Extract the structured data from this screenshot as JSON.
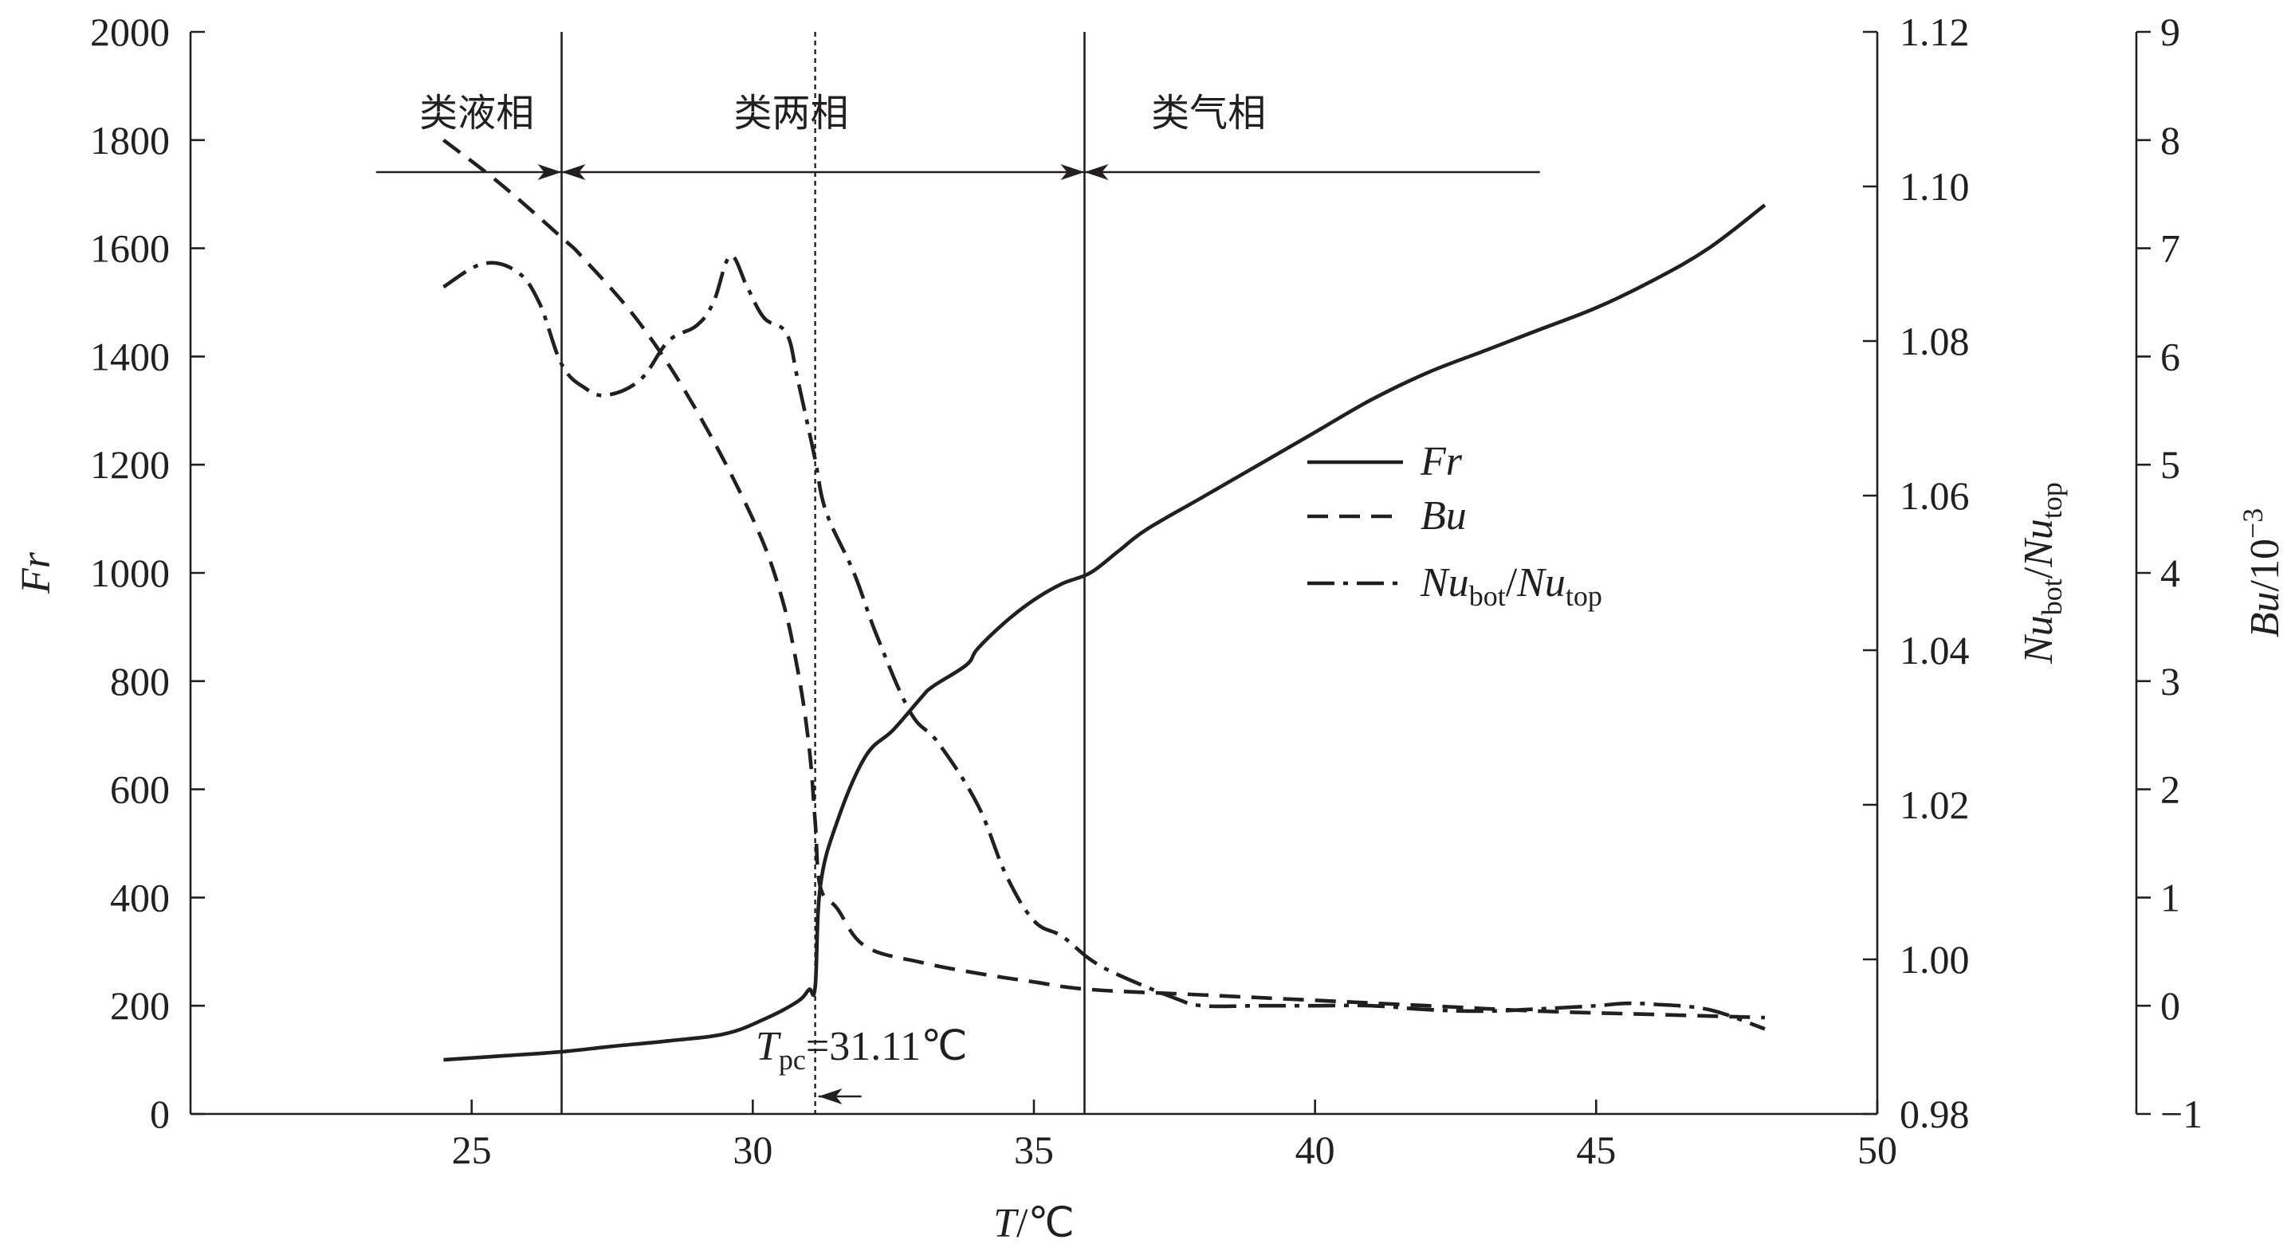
{
  "chart_data": {
    "type": "line",
    "xlabel": {
      "var": "T",
      "unit": "/℃"
    },
    "x_axis": {
      "range": [
        20,
        50
      ],
      "ticks": [
        "25",
        "30",
        "35",
        "40",
        "45",
        "50"
      ]
    },
    "y_left": {
      "label": "Fr",
      "range": [
        0,
        2000
      ],
      "ticks": [
        "0",
        "200",
        "400",
        "600",
        "800",
        "1000",
        "1200",
        "1400",
        "1600",
        "1800",
        "2000"
      ]
    },
    "y_right1": {
      "label_parts": [
        "Nu",
        "bot",
        "/",
        "Nu",
        "top"
      ],
      "range": [
        0.98,
        1.12
      ],
      "ticks": [
        "0.98",
        "1.00",
        "1.02",
        "1.04",
        "1.06",
        "1.08",
        "1.10",
        "1.12"
      ]
    },
    "y_right2": {
      "label_parts": [
        "Bu",
        "/10",
        "−3"
      ],
      "range": [
        -1,
        9
      ],
      "ticks": [
        "−1",
        "0",
        "1",
        "2",
        "3",
        "4",
        "5",
        "6",
        "7",
        "8",
        "9"
      ]
    },
    "regions": [
      {
        "label": "类液相",
        "x_from": 23.3,
        "x_to": 26.6
      },
      {
        "label": "类两相",
        "x_from": 26.6,
        "x_to": 35.9
      },
      {
        "label": "类气相",
        "x_from": 35.9,
        "x_to": 44.0
      }
    ],
    "boundaries": [
      26.6,
      35.9
    ],
    "pseudo_critical": {
      "x": 31.11,
      "label_var": "T",
      "label_sub": "pc",
      "label_value": "=31.11℃"
    },
    "legend": {
      "position": "center-right",
      "entries": [
        {
          "series": "Fr",
          "style": "solid"
        },
        {
          "series": "Bu",
          "style": "dashed"
        },
        {
          "series": "Nubot/Nutop",
          "style": "dash-dot",
          "parts": [
            "Nu",
            "bot",
            "/",
            "Nu",
            "top"
          ]
        }
      ]
    },
    "series": [
      {
        "name": "Fr",
        "axis": "left",
        "style": "solid",
        "x": [
          24.5,
          25.5,
          26.6,
          27.5,
          28.5,
          29.5,
          30.2,
          30.8,
          31.0,
          31.11,
          31.2,
          31.5,
          32.0,
          32.5,
          33.0,
          33.2,
          33.8,
          34.0,
          34.5,
          35.0,
          35.5,
          36.0,
          36.5,
          37.0,
          38.0,
          39.0,
          40.0,
          41.0,
          42.0,
          43.0,
          44.0,
          45.0,
          46.0,
          47.0,
          48.0
        ],
        "y": [
          100,
          107,
          115,
          125,
          135,
          148,
          175,
          208,
          230,
          235,
          420,
          540,
          660,
          710,
          770,
          790,
          830,
          860,
          910,
          950,
          980,
          1000,
          1040,
          1080,
          1140,
          1200,
          1260,
          1320,
          1370,
          1410,
          1450,
          1490,
          1540,
          1600,
          1680
        ]
      },
      {
        "name": "Bu",
        "axis": "right2",
        "style": "dashed",
        "x": [
          24.5,
          25.5,
          26.6,
          27.0,
          28.0,
          29.0,
          30.0,
          30.5,
          30.8,
          31.0,
          31.11,
          31.2,
          31.5,
          32.0,
          33.0,
          34.0,
          35.0,
          36.0,
          38.0,
          40.0,
          42.0,
          44.0,
          46.0,
          48.0
        ],
        "y": [
          8.0,
          7.6,
          7.1,
          6.9,
          6.3,
          5.5,
          4.5,
          3.8,
          3.1,
          2.4,
          1.7,
          1.1,
          0.9,
          0.55,
          0.4,
          0.3,
          0.22,
          0.15,
          0.1,
          0.05,
          0.0,
          -0.05,
          -0.08,
          -0.11
        ]
      },
      {
        "name": "Nubot/Nutop",
        "axis": "right1",
        "style": "dash-dot",
        "x": [
          24.5,
          25.2,
          25.8,
          26.2,
          26.6,
          27.0,
          27.4,
          28.0,
          28.5,
          29.0,
          29.3,
          29.6,
          29.9,
          30.2,
          30.6,
          30.8,
          31.1,
          31.3,
          31.8,
          32.2,
          32.8,
          33.3,
          34.0,
          34.5,
          35.0,
          35.5,
          36.0,
          36.5,
          37.5,
          38.0,
          39.0,
          40.0,
          41.0,
          42.0,
          43.0,
          44.0,
          45.0,
          45.5,
          46.0,
          47.0,
          48.0
        ],
        "y": [
          1.087,
          1.09,
          1.089,
          1.085,
          1.077,
          1.074,
          1.073,
          1.075,
          1.08,
          1.082,
          1.085,
          1.091,
          1.087,
          1.083,
          1.081,
          1.075,
          1.065,
          1.058,
          1.05,
          1.042,
          1.032,
          1.028,
          1.02,
          1.011,
          1.005,
          1.003,
          1.0,
          0.998,
          0.995,
          0.994,
          0.994,
          0.994,
          0.994,
          0.9935,
          0.9933,
          0.9936,
          0.994,
          0.9943,
          0.9942,
          0.9935,
          0.991
        ]
      }
    ]
  }
}
